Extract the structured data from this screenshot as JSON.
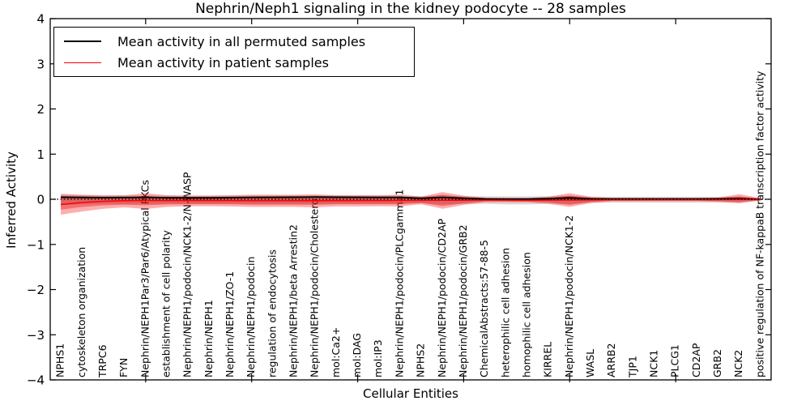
{
  "chart_data": {
    "type": "line",
    "title": "Nephrin/Neph1 signaling in the kidney podocyte -- 28 samples",
    "xlabel": "Cellular Entities",
    "ylabel": "Inferred Activity",
    "ylim": [
      -4,
      4
    ],
    "ytick_values": [
      4,
      3,
      2,
      1,
      0,
      -1,
      -2,
      -3,
      -4
    ],
    "ytick_labels": [
      "4",
      "3",
      "2",
      "1",
      "0",
      "−1",
      "−2",
      "−3",
      "−4"
    ],
    "x_major_tick_positions": [
      5,
      10,
      15,
      20,
      25,
      30
    ],
    "grid": false,
    "legend_position": "upper-left",
    "zero_line": {
      "style": "dotted",
      "value": 0,
      "color": "#000000"
    },
    "categories": [
      "NPHS1",
      "cytoskeleton organization",
      "TRPC6",
      "FYN",
      "Nephrin/NEPH1Par3/Par6/Atypical PKCs",
      "establishment of cell polarity",
      "Nephrin/NEPH1/podocin/NCK1-2/N-WASP",
      "Nephrin/NEPH1",
      "Nephrin/NEPH1/ZO-1",
      "Nephrin/NEPH1/podocin",
      "regulation of endocytosis",
      "Nephrin/NEPH1/beta Arrestin2",
      "Nephrin/NEPH1/podocin/Cholesterol",
      "mol:Ca2+",
      "mol:DAG",
      "mol:IP3",
      "Nephrin/NEPH1/podocin/PLCgamma1",
      "NPHS2",
      "Nephrin/NEPH1/podocin/CD2AP",
      "Nephrin/NEPH1/podocin/GRB2",
      "ChemicalAbstracts:57-88-5",
      "heterophilic cell adhesion",
      "homophilic cell adhesion",
      "KIRREL",
      "Nephrin/NEPH1/podocin/NCK1-2",
      "WASL",
      "ARRB2",
      "TJP1",
      "NCK1",
      "PLCG1",
      "CD2AP",
      "GRB2",
      "NCK2",
      "positive regulation of NF-kappaB transcription factor activity"
    ],
    "series": [
      {
        "name": "Mean activity in all permuted samples",
        "color": "#000000",
        "values": [
          0.045,
          0.04,
          0.036,
          0.038,
          0.04,
          0.034,
          0.03,
          0.032,
          0.036,
          0.04,
          0.043,
          0.045,
          0.048,
          0.045,
          0.043,
          0.041,
          0.04,
          0.022,
          0.041,
          0.022,
          0.007,
          0.005,
          0.005,
          0.014,
          0.03,
          0.009,
          0.007,
          0.007,
          0.007,
          0.007,
          0.007,
          0.009,
          0.013,
          -0.005
        ]
      },
      {
        "name": "Mean activity in patient samples",
        "color": "#ff0000",
        "values": [
          -0.117,
          -0.072,
          -0.045,
          -0.032,
          -0.027,
          -0.029,
          -0.029,
          -0.029,
          -0.029,
          -0.03,
          -0.03,
          -0.03,
          -0.032,
          -0.03,
          -0.029,
          -0.029,
          -0.027,
          -0.023,
          -0.022,
          -0.022,
          -0.018,
          -0.02,
          -0.022,
          -0.02,
          -0.018,
          -0.014,
          -0.011,
          -0.011,
          -0.009,
          -0.009,
          -0.009,
          -0.007,
          -0.004,
          -0.005
        ]
      }
    ],
    "bands": [
      {
        "name": "permuted samples spread",
        "color": "rgba(120,120,120,0.28)",
        "upper": [
          0.1,
          0.09,
          0.08,
          0.08,
          0.085,
          0.08,
          0.08,
          0.08,
          0.08,
          0.08,
          0.08,
          0.08,
          0.082,
          0.08,
          0.08,
          0.08,
          0.08,
          0.07,
          0.09,
          0.07,
          0.065,
          0.065,
          0.065,
          0.07,
          0.08,
          0.06,
          0.055,
          0.055,
          0.055,
          0.055,
          0.055,
          0.055,
          0.06,
          0.02
        ],
        "lower": [
          -0.13,
          -0.11,
          -0.1,
          -0.1,
          -0.1,
          -0.1,
          -0.1,
          -0.1,
          -0.1,
          -0.1,
          -0.1,
          -0.1,
          -0.1,
          -0.1,
          -0.1,
          -0.1,
          -0.1,
          -0.09,
          -0.11,
          -0.1,
          -0.1,
          -0.115,
          -0.115,
          -0.1,
          -0.1,
          -0.085,
          -0.075,
          -0.075,
          -0.075,
          -0.075,
          -0.075,
          -0.075,
          -0.075,
          -0.03
        ]
      },
      {
        "name": "patient samples spread outer",
        "color": "rgba(255,0,0,0.32)",
        "upper": [
          0.12,
          0.1,
          0.09,
          0.09,
          0.135,
          0.09,
          0.08,
          0.08,
          0.09,
          0.1,
          0.1,
          0.1,
          0.11,
          0.09,
          0.09,
          0.09,
          0.1,
          0.06,
          0.16,
          0.08,
          0.035,
          0.027,
          0.027,
          0.06,
          0.135,
          0.055,
          0.027,
          0.027,
          0.027,
          0.027,
          0.027,
          0.035,
          0.115,
          0.025
        ],
        "lower": [
          -0.34,
          -0.27,
          -0.21,
          -0.18,
          -0.215,
          -0.17,
          -0.155,
          -0.155,
          -0.16,
          -0.17,
          -0.17,
          -0.17,
          -0.18,
          -0.16,
          -0.16,
          -0.155,
          -0.16,
          -0.11,
          -0.21,
          -0.125,
          -0.065,
          -0.065,
          -0.07,
          -0.1,
          -0.17,
          -0.08,
          -0.045,
          -0.045,
          -0.045,
          -0.045,
          -0.045,
          -0.055,
          -0.09,
          -0.025
        ]
      },
      {
        "name": "patient samples spread inner",
        "color": "rgba(210,0,0,0.34)",
        "upper": [
          0.07,
          0.05,
          0.04,
          0.04,
          0.075,
          0.045,
          0.045,
          0.045,
          0.05,
          0.055,
          0.055,
          0.055,
          0.06,
          0.05,
          0.05,
          0.05,
          0.055,
          0.03,
          0.1,
          0.045,
          0.018,
          0.012,
          0.012,
          0.03,
          0.08,
          0.027,
          0.012,
          0.012,
          0.012,
          0.012,
          0.012,
          0.02,
          0.065,
          0.015
        ],
        "lower": [
          -0.23,
          -0.17,
          -0.135,
          -0.12,
          -0.135,
          -0.115,
          -0.11,
          -0.11,
          -0.11,
          -0.12,
          -0.12,
          -0.12,
          -0.125,
          -0.11,
          -0.11,
          -0.11,
          -0.11,
          -0.08,
          -0.15,
          -0.09,
          -0.045,
          -0.045,
          -0.05,
          -0.07,
          -0.125,
          -0.055,
          -0.032,
          -0.032,
          -0.032,
          -0.032,
          -0.032,
          -0.04,
          -0.06,
          -0.018
        ]
      }
    ]
  }
}
